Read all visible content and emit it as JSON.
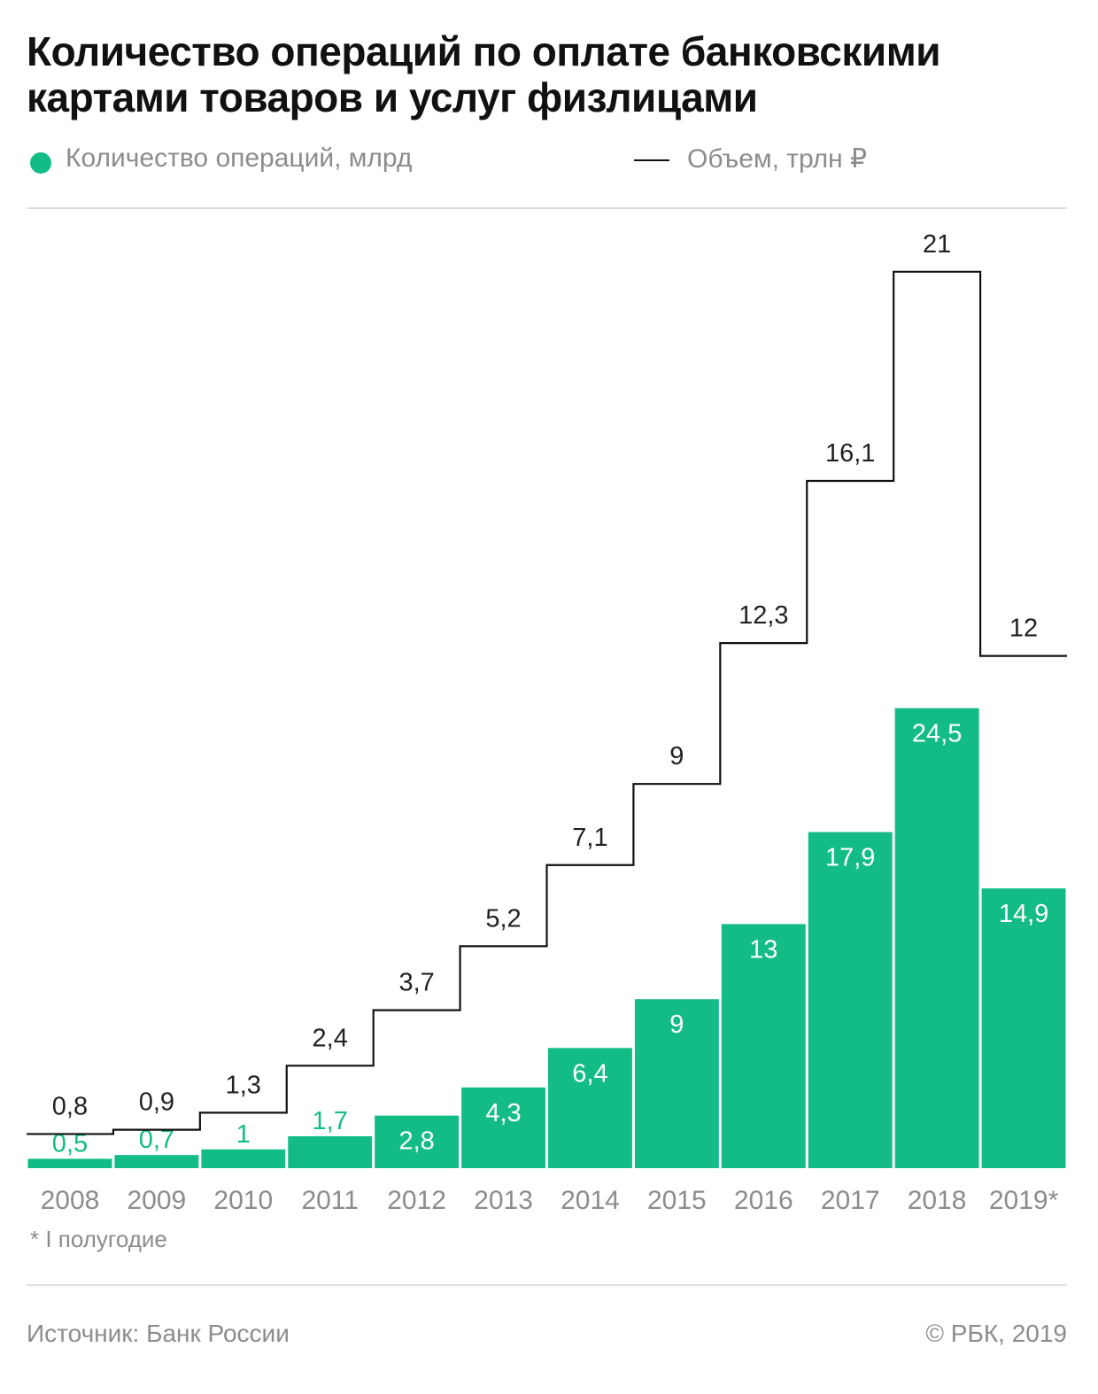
{
  "title": "Количество операций по оплате банковскими картами товаров и услуг физлицами",
  "legend": {
    "bars_label": "Количество операций, млрд",
    "line_label": "Объем, трлн ₽"
  },
  "footnote": "* I полугодие",
  "source": "Источник: Банк России",
  "copyright": "© РБК, 2019",
  "colors": {
    "bar": "#13bc86",
    "line": "#111111",
    "axis_text": "#8c8c8c"
  },
  "chart_data": {
    "type": "bar",
    "categories": [
      "2008",
      "2009",
      "2010",
      "2011",
      "2012",
      "2013",
      "2014",
      "2015",
      "2016",
      "2017",
      "2018",
      "2019*"
    ],
    "series": [
      {
        "name": "Количество операций, млрд",
        "type": "bar",
        "values": [
          0.5,
          0.7,
          1,
          1.7,
          2.8,
          4.3,
          6.4,
          9,
          13,
          17.9,
          24.5,
          14.9
        ],
        "labels": [
          "0,5",
          "0,7",
          "1",
          "1,7",
          "2,8",
          "4,3",
          "6,4",
          "9",
          "13",
          "17,9",
          "24,5",
          "14,9"
        ]
      },
      {
        "name": "Объем, трлн ₽",
        "type": "step",
        "values": [
          0.8,
          0.9,
          1.3,
          2.4,
          3.7,
          5.2,
          7.1,
          9,
          12.3,
          16.1,
          21,
          12
        ],
        "labels": [
          "0,8",
          "0,9",
          "1,3",
          "2,4",
          "3,7",
          "5,2",
          "7,1",
          "9",
          "12,3",
          "16,1",
          "21",
          "12"
        ]
      }
    ]
  }
}
